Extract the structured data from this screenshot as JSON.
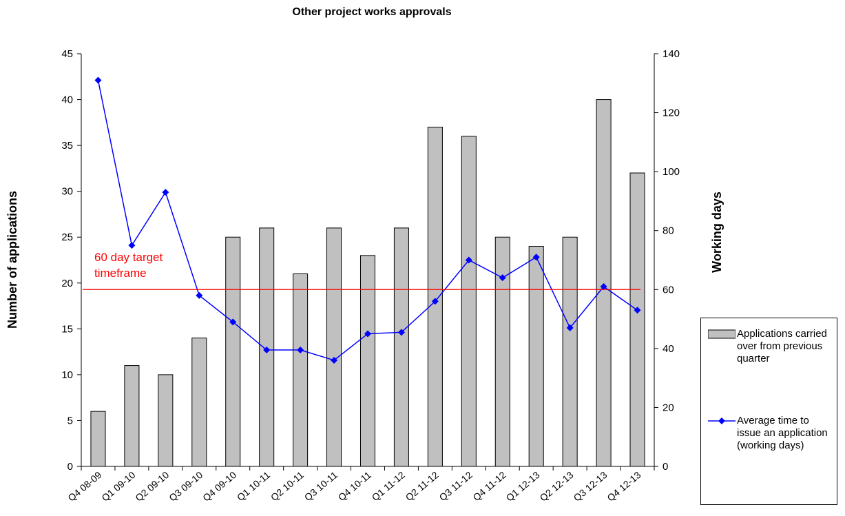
{
  "chart_data": {
    "type": "bar_line",
    "title": "Other project works approvals",
    "y_label": "Number of applications",
    "y2_label": "Working days",
    "categories": [
      "Q4 08-09",
      "Q1 09-10",
      "Q2 09-10",
      "Q3 09-10",
      "Q4 09-10",
      "Q1 10-11",
      "Q2 10-11",
      "Q3 10-11",
      "Q4 10-11",
      "Q1 11-12",
      "Q2 11-12",
      "Q3 11-12",
      "Q4 11-12",
      "Q1 12-13",
      "Q2 12-13",
      "Q3 12-13",
      "Q4 12-13"
    ],
    "series": [
      {
        "name": "Applications carried over from previous quarter",
        "type": "bar",
        "color": "#c0c0c0",
        "values": [
          6,
          11,
          10,
          14,
          25,
          26,
          21,
          26,
          23,
          26,
          37,
          36,
          25,
          24,
          25,
          40,
          32
        ]
      },
      {
        "name": "Average time to issue an application (working days)",
        "type": "line",
        "axis": "y2",
        "color": "#0000ff",
        "values": [
          131,
          75,
          93,
          58,
          49,
          39.5,
          39.5,
          36,
          45,
          45.5,
          56,
          70,
          64,
          71,
          47,
          61,
          53
        ]
      }
    ],
    "ylim": [
      0,
      45
    ],
    "yticks": [
      0,
      5,
      10,
      15,
      20,
      25,
      30,
      35,
      40,
      45
    ],
    "y2lim": [
      0,
      140
    ],
    "y2ticks": [
      0,
      20,
      40,
      60,
      80,
      100,
      120,
      140
    ],
    "target": {
      "value": 60,
      "axis": "y2",
      "color": "#ff0000",
      "label": [
        "60 day target",
        "timeframe"
      ]
    }
  }
}
